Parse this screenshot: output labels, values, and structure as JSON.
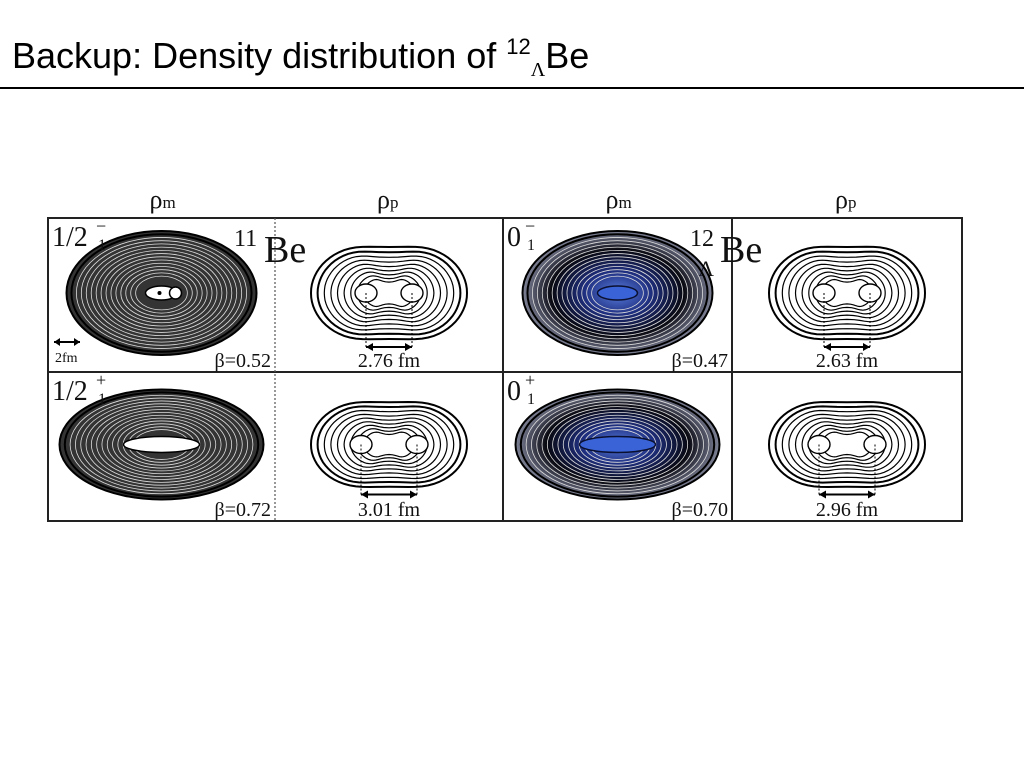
{
  "title": {
    "prefix": "Backup: Density distribution of ",
    "mass": "12",
    "sub": "Λ",
    "element": "Be"
  },
  "figure": {
    "headers": [
      {
        "rho": "ρ",
        "sub": "m"
      },
      {
        "rho": "ρ",
        "sub": "p"
      },
      {
        "rho": "ρ",
        "sub": "m"
      },
      {
        "rho": "ρ",
        "sub": "p"
      }
    ],
    "nuclei": [
      {
        "mass": "11",
        "element": "Be"
      },
      {
        "mass": "12",
        "sub": "Λ",
        "element": "Be"
      }
    ],
    "scale_label": "2fm",
    "states": [
      {
        "j": "1/2",
        "sub": "1",
        "sup": "−",
        "beta": "β=0.52",
        "distance": "2.76 fm"
      },
      {
        "j": "0",
        "sub": "1",
        "sup": "−",
        "beta": "β=0.47",
        "distance": "2.63 fm"
      },
      {
        "j": "1/2",
        "sub": "1",
        "sup": "+",
        "beta": "β=0.72",
        "distance": "3.01 fm"
      },
      {
        "j": "0",
        "sub": "1",
        "sup": "+",
        "beta": "β=0.70",
        "distance": "2.96 fm"
      }
    ]
  }
}
